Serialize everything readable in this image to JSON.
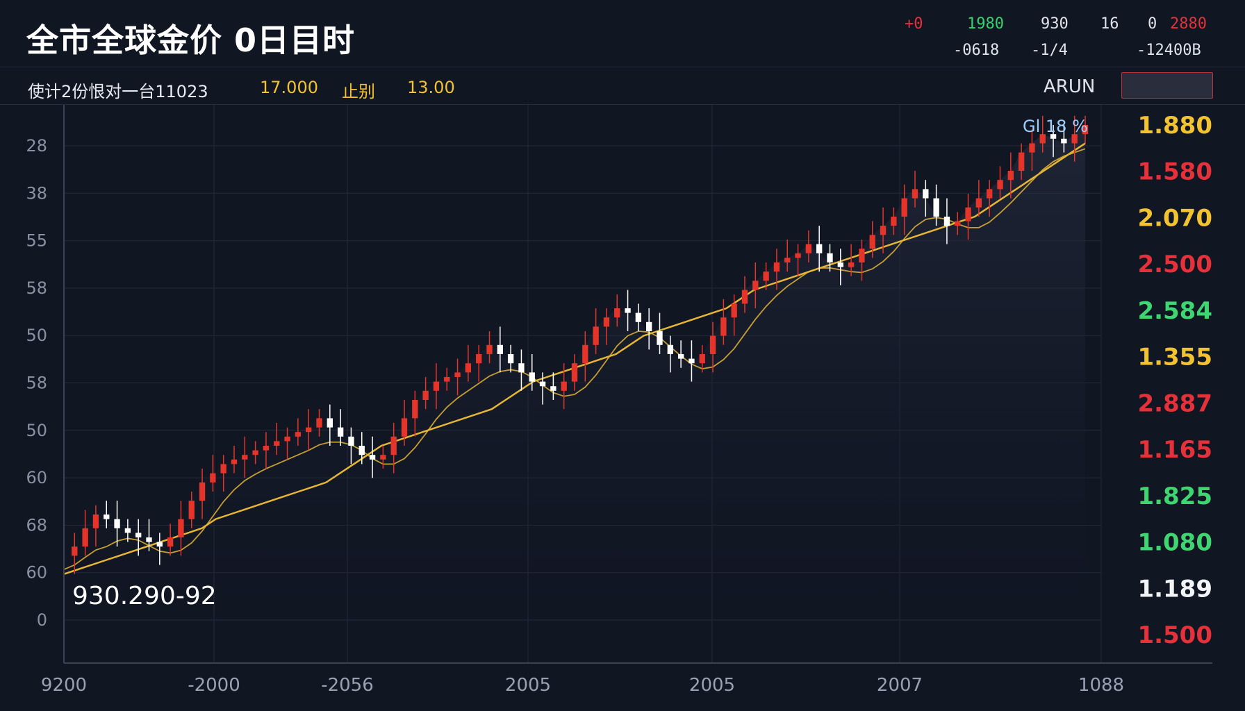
{
  "header": {
    "title": "全市全球金价 0日目时",
    "ticker_row1": [
      "+0",
      "1980",
      "930",
      "16",
      "0",
      "2880"
    ],
    "ticker_row2": [
      "-0618",
      "-1/4",
      "-12400B"
    ],
    "info_label": "使计2份恨对一台11023",
    "info_value1": "17.000",
    "info_tag": "止别",
    "info_value2": "13.00",
    "brand": "ARUN"
  },
  "colors": {
    "background": "#111623",
    "grid": "#232a3a",
    "up": "#e5352b",
    "down": "#ffffff",
    "ma": "#e7b635",
    "value_yellow": "#f2c230",
    "value_red": "#e5323a",
    "value_green": "#3fd672",
    "value_white": "#f2f4f7"
  },
  "chart_data": {
    "type": "line",
    "left_axis_labels": [
      "28",
      "38",
      "55",
      "58",
      "50",
      "58",
      "50",
      "60",
      "68",
      "60",
      "0"
    ],
    "x_tick_labels": [
      "9200",
      "-2000",
      "-2056",
      "2005",
      "2005",
      "2007",
      "1088"
    ],
    "right_values": [
      {
        "text": "1.880",
        "color": "yellow"
      },
      {
        "text": "1.580",
        "color": "red"
      },
      {
        "text": "2.070",
        "color": "yellow"
      },
      {
        "text": "2.500",
        "color": "red"
      },
      {
        "text": "2.584",
        "color": "green"
      },
      {
        "text": "1.355",
        "color": "yellow"
      },
      {
        "text": "2.887",
        "color": "red"
      },
      {
        "text": "1.165",
        "color": "red"
      },
      {
        "text": "1.825",
        "color": "green"
      },
      {
        "text": "1.080",
        "color": "green"
      },
      {
        "text": "1.189",
        "color": "white"
      },
      {
        "text": "1.500",
        "color": "red"
      }
    ],
    "top_right_annotation": "Gl 18 %",
    "annotation": "930.290-92",
    "ylim": [
      0,
      100
    ],
    "series": [
      {
        "values": [
          6,
          8,
          12,
          15,
          14,
          12,
          11,
          10,
          9,
          8,
          10,
          14,
          18,
          22,
          24,
          26,
          27,
          28,
          29,
          30,
          31,
          32,
          33,
          34,
          36,
          34,
          32,
          30,
          28,
          27,
          28,
          32,
          36,
          40,
          42,
          44,
          45,
          46,
          48,
          50,
          52,
          50,
          48,
          46,
          44,
          43,
          42,
          44,
          48,
          52,
          56,
          58,
          60,
          59,
          57,
          55,
          52,
          50,
          49,
          48,
          50,
          54,
          58,
          61,
          64,
          66,
          68,
          70,
          71,
          72,
          74,
          72,
          70,
          69,
          70,
          73,
          76,
          78,
          80,
          84,
          86,
          84,
          80,
          78,
          79,
          82,
          84,
          86,
          88,
          90,
          94,
          96,
          98,
          97,
          96,
          98,
          100
        ]
      },
      {
        "values": [
          2,
          3,
          4,
          5,
          6,
          7,
          8,
          9,
          10,
          11,
          12,
          14,
          15,
          16,
          17,
          18,
          19,
          20,
          21,
          22,
          24,
          26,
          28,
          30,
          31,
          32,
          33,
          34,
          35,
          36,
          37,
          38,
          40,
          42,
          44,
          45,
          46,
          47,
          48,
          49,
          50,
          52,
          54,
          55,
          56,
          57,
          58,
          59,
          60,
          62,
          64,
          65,
          66,
          67,
          68,
          69,
          70,
          71,
          72,
          73,
          74,
          75,
          76,
          77,
          78,
          79,
          80,
          82,
          84,
          86,
          88,
          90,
          92,
          94,
          96
        ]
      }
    ]
  }
}
